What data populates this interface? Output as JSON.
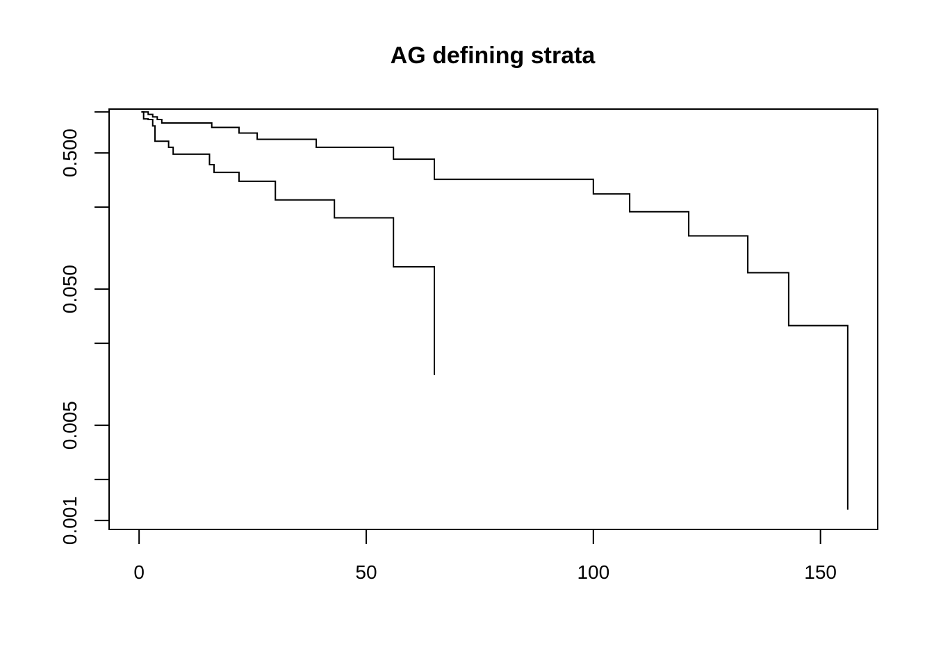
{
  "chart_data": {
    "type": "line",
    "step": true,
    "title": "AG defining strata",
    "xlabel": "",
    "ylabel": "",
    "xlim": [
      -6.6,
      162.6
    ],
    "ylim": [
      0.00086,
      1.05
    ],
    "ylog": true,
    "box": true,
    "grid": false,
    "x_ticks": [
      0,
      50,
      100,
      150
    ],
    "x_tick_labels": [
      "0",
      "50",
      "100",
      "150"
    ],
    "y_ticks": [
      0.001,
      0.002,
      0.005,
      0.02,
      0.05,
      0.2,
      0.5,
      1.0
    ],
    "y_tick_labels": [
      "0.001",
      "",
      "0.005",
      "",
      "0.050",
      "",
      "0.500",
      ""
    ],
    "series": [
      {
        "x": [
          0.5,
          2,
          3,
          4,
          5,
          16,
          22,
          26,
          39,
          56,
          65,
          100,
          108,
          121,
          134,
          143,
          156,
          156
        ],
        "y": [
          1.0,
          0.96,
          0.92,
          0.88,
          0.83,
          0.77,
          0.7,
          0.63,
          0.55,
          0.45,
          0.32,
          0.25,
          0.185,
          0.123,
          0.066,
          0.027,
          0.0012,
          0.0012
        ]
      },
      {
        "x": [
          0.5,
          1,
          2,
          3,
          3.5,
          6.5,
          7.5,
          15.5,
          16.5,
          22,
          30,
          43,
          56,
          65,
          65
        ],
        "y": [
          1.0,
          0.89,
          0.88,
          0.79,
          0.61,
          0.55,
          0.49,
          0.41,
          0.36,
          0.31,
          0.226,
          0.167,
          0.073,
          0.0117,
          0.0117
        ]
      }
    ]
  }
}
